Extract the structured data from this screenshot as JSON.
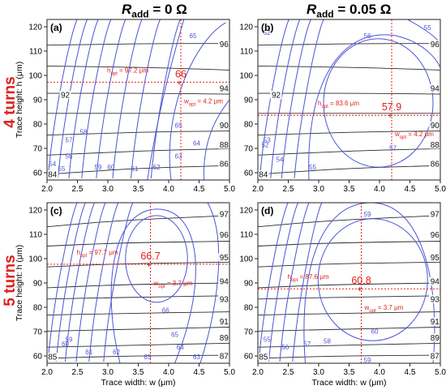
{
  "figure": {
    "col_titles": [
      {
        "symbol": "R",
        "sub": "add",
        "rest": " = 0 Ω"
      },
      {
        "symbol": "R",
        "sub": "add",
        "rest": " = 0.05 Ω"
      }
    ],
    "row_titles": [
      "4 turns",
      "5 turns"
    ],
    "colors": {
      "blue_contour": "#4b55d6",
      "black_contour": "#2b2b2b",
      "optimum": "#e0201b"
    }
  },
  "chart_data": [
    {
      "type": "contour",
      "panel_label": "(a)",
      "xlabel": "",
      "ylabel": "Trace height: h (μm)",
      "xlim": [
        2.0,
        5.0
      ],
      "ylim": [
        57,
        123
      ],
      "xticks": [
        "2.0",
        "2.5",
        "3.0",
        "3.5",
        "4.0",
        "4.5",
        "5.0"
      ],
      "yticks": [
        "60",
        "70",
        "80",
        "90",
        "100",
        "110",
        "120"
      ],
      "optimum": {
        "w": 4.2,
        "h": 97.2,
        "value": "66",
        "h_label": "h_opt = 97.2 μm",
        "w_label": "w_opt = 4.2 μm"
      },
      "blue_levels": [
        "54",
        "55",
        "56",
        "57",
        "58",
        "59",
        "60",
        "61",
        "62",
        "63",
        "64",
        "65",
        "65"
      ],
      "black_levels": [
        "84",
        "86",
        "88",
        "90",
        "92",
        "94",
        "96"
      ]
    },
    {
      "type": "contour",
      "panel_label": "(b)",
      "xlabel": "",
      "ylabel": "",
      "xlim": [
        2.0,
        5.0
      ],
      "ylim": [
        57,
        123
      ],
      "xticks": [
        "2.0",
        "2.5",
        "3.0",
        "3.5",
        "4.0",
        "4.5",
        "5.0"
      ],
      "yticks": [
        "60",
        "70",
        "80",
        "90",
        "100",
        "110",
        "120"
      ],
      "optimum": {
        "w": 4.2,
        "h": 83.6,
        "value": "57.9",
        "h_label": "h_opt = 83.6 μm",
        "w_label": "w_opt = 4.2 μm"
      },
      "blue_levels": [
        "52",
        "53",
        "54",
        "55",
        "56",
        "57",
        "55",
        "52"
      ],
      "black_levels": [
        "84",
        "86",
        "88",
        "90",
        "92",
        "94",
        "96"
      ]
    },
    {
      "type": "contour",
      "panel_label": "(c)",
      "xlabel": "Trace width: w (μm)",
      "ylabel": "Trace height: h (μm)",
      "xlim": [
        2.0,
        5.0
      ],
      "ylim": [
        57,
        123
      ],
      "xticks": [
        "2.0",
        "2.5",
        "3.0",
        "3.5",
        "4.0",
        "4.5",
        "5.0"
      ],
      "yticks": [
        "60",
        "70",
        "80",
        "90",
        "100",
        "110",
        "120"
      ],
      "optimum": {
        "w": 3.7,
        "h": 97.7,
        "value": "66.7",
        "h_label": "h_opt = 97.7 μm",
        "w_label": "w_opt = 3.7 μm"
      },
      "blue_levels": [
        "59",
        "60",
        "61",
        "62",
        "63",
        "63",
        "64",
        "65",
        "66"
      ],
      "black_levels": [
        "85",
        "87",
        "89",
        "91",
        "93",
        "94",
        "95",
        "96",
        "97"
      ]
    },
    {
      "type": "contour",
      "panel_label": "(d)",
      "xlabel": "Trace width: w (μm)",
      "ylabel": "",
      "xlim": [
        2.0,
        5.0
      ],
      "ylim": [
        57,
        123
      ],
      "xticks": [
        "2.0",
        "2.5",
        "3.0",
        "3.5",
        "4.0",
        "4.5",
        "5.0"
      ],
      "yticks": [
        "60",
        "70",
        "80",
        "90",
        "100",
        "110",
        "120"
      ],
      "optimum": {
        "w": 3.7,
        "h": 87.6,
        "value": "60.8",
        "h_label": "h_opt = 87.6 μm",
        "w_label": "w_opt = 3.7 μm"
      },
      "blue_levels": [
        "55",
        "56",
        "57",
        "58",
        "59",
        "59",
        "60"
      ],
      "black_levels": [
        "85",
        "87",
        "89",
        "91",
        "93",
        "94",
        "95",
        "96",
        "97"
      ]
    }
  ]
}
